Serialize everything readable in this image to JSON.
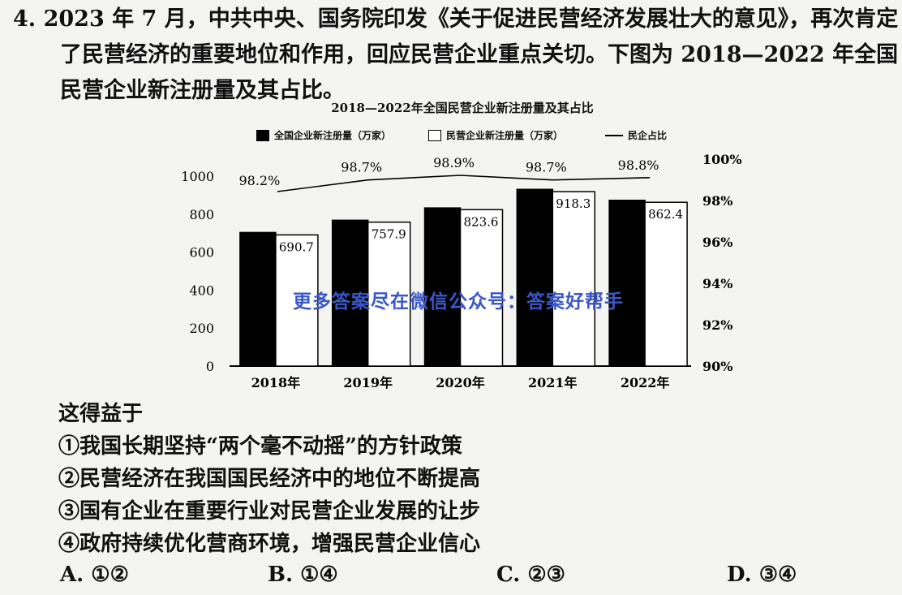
{
  "question": {
    "stem_lines": [
      "4. 2023 年 7 月，中共中央、国务院印发《关于促进民营经济发展壮大的意见》，再次肯定",
      "了民营经济的重要地位和作用，回应民营企业重点关切。下图为 2018—2022 年全国",
      "民营企业新注册量及其占比。"
    ],
    "prompt": "这得益于",
    "statements": [
      "①我国长期坚持“两个毫不动摇”的方针政策",
      "②民营经济在我国国民经济中的地位不断提高",
      "③国有企业在重要行业对民营企业发展的让步",
      "④政府持续优化营商环境，增强民营企业信心"
    ],
    "options": [
      {
        "letter": "A.",
        "text": "①②"
      },
      {
        "letter": "B.",
        "text": "①④"
      },
      {
        "letter": "C.",
        "text": "②③"
      },
      {
        "letter": "D.",
        "text": "③④"
      }
    ]
  },
  "watermark": "更多答案尽在微信公众号：答案好帮手",
  "chart_data": {
    "type": "bar",
    "title": "2018—2022年全国民营企业新注册量及其占比",
    "legend": [
      "全国企业新注册量（万家）",
      "民营企业新注册量（万家）",
      "民企占比"
    ],
    "categories": [
      "2018年",
      "2019年",
      "2020年",
      "2021年",
      "2022年"
    ],
    "series": [
      {
        "name": "全国企业新注册量（万家）",
        "values": [
          703.4,
          767.9,
          832.7,
          930.4,
          872.9
        ],
        "color": "#000000"
      },
      {
        "name": "民营企业新注册量（万家）",
        "values": [
          690.7,
          757.9,
          823.6,
          918.3,
          862.4
        ],
        "color": "#ffffff",
        "labels": [
          "690.7",
          "757.9",
          "823.6",
          "918.3",
          "862.4"
        ]
      }
    ],
    "line_series": {
      "name": "民企占比",
      "values": [
        98.2,
        98.7,
        98.9,
        98.7,
        98.8
      ],
      "labels": [
        "98.2%",
        "98.7%",
        "98.9%",
        "98.7%",
        "98.8%"
      ]
    },
    "y_left": {
      "ticks": [
        "0",
        "200",
        "400",
        "600",
        "800",
        "1000"
      ],
      "ylim": [
        0,
        1000
      ]
    },
    "y_right": {
      "ticks": [
        "90%",
        "92%",
        "94%",
        "96%",
        "98%",
        "100%"
      ],
      "ylim": [
        90,
        100
      ]
    },
    "legend_position": "top"
  }
}
